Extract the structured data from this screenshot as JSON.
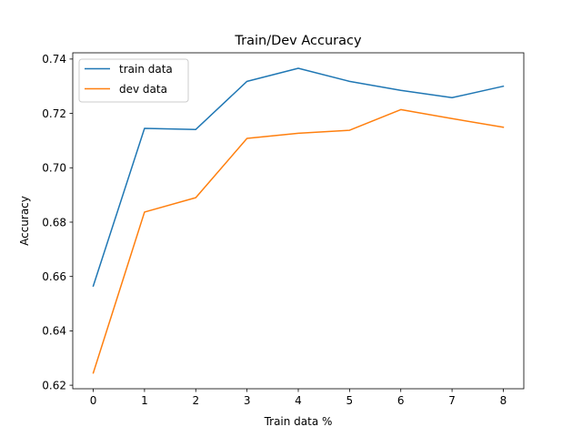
{
  "chart_data": {
    "type": "line",
    "title": "Train/Dev Accuracy",
    "xlabel": "Train data %",
    "ylabel": "Accuracy",
    "x": [
      0,
      1,
      2,
      3,
      4,
      5,
      6,
      7,
      8
    ],
    "xticks": [
      "0",
      "1",
      "2",
      "3",
      "4",
      "5",
      "6",
      "7",
      "8"
    ],
    "yticks": [
      "0.62",
      "0.64",
      "0.66",
      "0.68",
      "0.70",
      "0.72",
      "0.74"
    ],
    "ytick_values": [
      0.62,
      0.64,
      0.66,
      0.68,
      0.7,
      0.72,
      0.74
    ],
    "xlim": [
      -0.4,
      8.4
    ],
    "ylim": [
      0.6187,
      0.7423
    ],
    "grid": false,
    "legend_position": "top-left",
    "series": [
      {
        "name": "train data",
        "color": "#1f77b4",
        "values": [
          0.6565,
          0.7145,
          0.7141,
          0.7318,
          0.7366,
          0.7318,
          0.7285,
          0.7258,
          0.73
        ]
      },
      {
        "name": "dev data",
        "color": "#ff7f0e",
        "values": [
          0.6245,
          0.6837,
          0.689,
          0.7108,
          0.7127,
          0.7138,
          0.7214,
          0.7181,
          0.7149
        ]
      }
    ]
  }
}
